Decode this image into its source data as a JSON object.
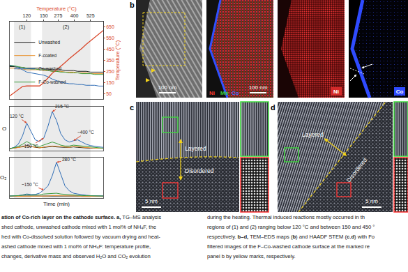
{
  "chart_data": [
    {
      "type": "line",
      "x": [
        0,
        5,
        10,
        15,
        20,
        25,
        30,
        35,
        40,
        45,
        50,
        55,
        60,
        65,
        70,
        75,
        80,
        85,
        90,
        95,
        100,
        105,
        110
      ],
      "xlim": [
        0,
        110
      ],
      "xticks": [],
      "ylim": [
        0,
        1
      ],
      "yticks": [],
      "x2_label": "Temperature (°C)",
      "x2ticks": [
        {
          "value": 20,
          "label": "120"
        },
        {
          "value": 40,
          "label": "150"
        },
        {
          "value": 57,
          "label": "275"
        },
        {
          "value": 76,
          "label": "400"
        },
        {
          "value": 95,
          "label": "525"
        }
      ],
      "y2_label": "Temperature (°C)",
      "y2lim": [
        0,
        700
      ],
      "y2ticks": [
        50,
        150,
        250,
        350,
        450,
        550,
        650
      ],
      "legend": "upper left",
      "regions": [
        {
          "label": "(1)",
          "x": [
            5,
            25
          ]
        },
        {
          "label": "(2)",
          "x": [
            38,
            95
          ]
        }
      ],
      "series": [
        {
          "name": "Unwashed",
          "color": "#1a1a1a",
          "values": [
            0.42,
            0.42,
            0.41,
            0.41,
            0.4,
            0.4,
            0.4,
            0.4,
            0.39,
            0.39,
            0.38,
            0.38,
            0.38,
            0.37,
            0.37,
            0.37,
            0.36,
            0.36,
            0.36,
            0.35,
            0.35,
            0.35,
            0.35
          ]
        },
        {
          "name": "F-coated",
          "color": "#e8912d",
          "values": [
            0.4,
            0.4,
            0.39,
            0.39,
            0.38,
            0.38,
            0.38,
            0.38,
            0.37,
            0.37,
            0.36,
            0.36,
            0.36,
            0.35,
            0.35,
            0.35,
            0.34,
            0.34,
            0.34,
            0.33,
            0.33,
            0.33,
            0.33
          ]
        },
        {
          "name": "Co-washed",
          "color": "#2f6db5",
          "values": [
            0.44,
            0.43,
            0.41,
            0.38,
            0.35,
            0.34,
            0.33,
            0.32,
            0.31,
            0.29,
            0.26,
            0.24,
            0.22,
            0.21,
            0.2,
            0.2,
            0.19,
            0.19,
            0.18,
            0.18,
            0.18,
            0.17,
            0.17
          ]
        },
        {
          "name": "F-Co-washed",
          "color": "#3a9a3a",
          "values": [
            0.43,
            0.43,
            0.42,
            0.41,
            0.4,
            0.39,
            0.39,
            0.38,
            0.38,
            0.37,
            0.36,
            0.36,
            0.35,
            0.35,
            0.34,
            0.34,
            0.34,
            0.33,
            0.33,
            0.33,
            0.32,
            0.32,
            0.32
          ]
        },
        {
          "color": "#d9472b",
          "axis": "y2",
          "values": [
            30,
            60,
            90,
            115,
            120,
            120,
            120,
            120,
            150,
            195,
            235,
            265,
            295,
            330,
            365,
            395,
            425,
            460,
            495,
            525,
            560,
            590,
            620
          ]
        }
      ]
    },
    {
      "type": "line",
      "label": "O",
      "x": [
        0,
        5,
        10,
        15,
        20,
        25,
        30,
        35,
        40,
        45,
        50,
        55,
        60,
        65,
        70,
        75,
        80,
        85,
        90,
        95,
        100,
        105,
        110
      ],
      "xlim": [
        0,
        110
      ],
      "xticks": [],
      "ylim": [
        0,
        1
      ],
      "yticks": [],
      "annotations": [
        {
          "text": "120 °C",
          "x": 20,
          "y": 0.62
        },
        {
          "text": "~150 °C",
          "x": 40,
          "y": 0.28
        },
        {
          "text": "215 °C",
          "x": 50,
          "y": 0.88
        },
        {
          "text": "~400 °C",
          "x": 75,
          "y": 0.22
        }
      ],
      "series": [
        {
          "name": "Unwashed",
          "color": "#1a1a1a",
          "values": [
            0.04,
            0.05,
            0.07,
            0.09,
            0.11,
            0.09,
            0.07,
            0.06,
            0.07,
            0.08,
            0.09,
            0.08,
            0.07,
            0.07,
            0.07,
            0.08,
            0.07,
            0.06,
            0.06,
            0.05,
            0.05,
            0.05,
            0.05
          ]
        },
        {
          "name": "F-coated",
          "color": "#e8912d",
          "values": [
            0.04,
            0.05,
            0.06,
            0.08,
            0.1,
            0.08,
            0.07,
            0.06,
            0.08,
            0.09,
            0.1,
            0.09,
            0.08,
            0.07,
            0.07,
            0.09,
            0.08,
            0.07,
            0.06,
            0.06,
            0.05,
            0.05,
            0.05
          ]
        },
        {
          "name": "Co-washed",
          "color": "#2f6db5",
          "values": [
            0.04,
            0.07,
            0.14,
            0.33,
            0.62,
            0.42,
            0.24,
            0.2,
            0.28,
            0.55,
            0.88,
            0.68,
            0.38,
            0.24,
            0.19,
            0.22,
            0.24,
            0.19,
            0.14,
            0.11,
            0.09,
            0.08,
            0.07
          ]
        },
        {
          "name": "F-Co-washed",
          "color": "#3a9a3a",
          "values": [
            0.04,
            0.06,
            0.09,
            0.14,
            0.2,
            0.15,
            0.11,
            0.09,
            0.12,
            0.16,
            0.19,
            0.16,
            0.12,
            0.1,
            0.1,
            0.12,
            0.11,
            0.09,
            0.08,
            0.07,
            0.06,
            0.06,
            0.05
          ]
        }
      ]
    },
    {
      "type": "line",
      "label": "O₂",
      "x_label": "Time (min)",
      "x": [
        0,
        5,
        10,
        15,
        20,
        25,
        30,
        35,
        40,
        45,
        50,
        55,
        60,
        65,
        70,
        75,
        80,
        85,
        90,
        95,
        100,
        105,
        110
      ],
      "xlim": [
        0,
        110
      ],
      "xticks": [],
      "ylim": [
        0,
        1
      ],
      "yticks": [],
      "annotations": [
        {
          "text": "280 °C",
          "x": 55,
          "y": 0.88
        },
        {
          "text": "~150 °C",
          "x": 40,
          "y": 0.2
        }
      ],
      "series": [
        {
          "name": "Unwashed",
          "color": "#1a1a1a",
          "values": [
            0.05,
            0.05,
            0.05,
            0.05,
            0.06,
            0.05,
            0.05,
            0.05,
            0.06,
            0.06,
            0.06,
            0.06,
            0.06,
            0.06,
            0.05,
            0.05,
            0.05,
            0.05,
            0.05,
            0.05,
            0.05,
            0.05,
            0.05
          ]
        },
        {
          "name": "F-coated",
          "color": "#e8912d",
          "values": [
            0.04,
            0.04,
            0.04,
            0.05,
            0.05,
            0.05,
            0.05,
            0.05,
            0.05,
            0.05,
            0.06,
            0.06,
            0.05,
            0.05,
            0.05,
            0.05,
            0.05,
            0.04,
            0.04,
            0.04,
            0.04,
            0.04,
            0.04
          ]
        },
        {
          "name": "Co-washed",
          "color": "#2f6db5",
          "values": [
            0.05,
            0.05,
            0.06,
            0.08,
            0.1,
            0.09,
            0.09,
            0.12,
            0.2,
            0.3,
            0.55,
            0.88,
            0.6,
            0.3,
            0.18,
            0.12,
            0.1,
            0.08,
            0.07,
            0.06,
            0.06,
            0.05,
            0.05
          ]
        },
        {
          "name": "F-Co-washed",
          "color": "#3a9a3a",
          "values": [
            0.05,
            0.05,
            0.06,
            0.07,
            0.08,
            0.07,
            0.07,
            0.08,
            0.1,
            0.11,
            0.12,
            0.12,
            0.1,
            0.09,
            0.08,
            0.07,
            0.07,
            0.06,
            0.06,
            0.06,
            0.05,
            0.05,
            0.05
          ]
        }
      ]
    }
  ],
  "panels": {
    "b": {
      "label": "b",
      "images": [
        {
          "type": "haadf",
          "scale_bar": "100 nm"
        },
        {
          "type": "eds_overlay",
          "scale_bar": "100 nm",
          "elements": [
            {
              "text": "Ni",
              "color": "#ff3b30"
            },
            {
              "text": "Mn",
              "color": "#3ad13a"
            },
            {
              "text": "Co",
              "color": "#4a68ff"
            }
          ]
        },
        {
          "type": "eds",
          "element": "Ni",
          "color": "#d42a2a"
        },
        {
          "type": "eds",
          "element": "Co",
          "color": "#2f4bff"
        }
      ]
    },
    "c": {
      "label": "c",
      "layered": "Layered",
      "disordered": "Disordered",
      "scale_bar": "5 nm"
    },
    "d": {
      "label": "d",
      "layered": "Layered",
      "disordered": "Disordered",
      "scale_bar": "5 nm"
    }
  },
  "caption": {
    "columns": [
      [
        [
          {
            "text": "ation of Co-rich layer on the cathode surface. a,",
            "bold": true
          },
          {
            "text": " TG–MS analysis"
          }
        ],
        [
          {
            "text": "shed cathode, unwashed cathode mixed with 1 mol% of NH₄F, the"
          }
        ],
        [
          {
            "text": "hed with Co-dissolved solution followed by vacuum drying and heat-"
          }
        ],
        [
          {
            "text": "ashed cathode mixed with 1 mol% of NH₄F: temperature profile,"
          }
        ],
        [
          {
            "text": "changes, derivative mass and observed H₂O and CO₂ evolution"
          }
        ]
      ],
      [
        [
          {
            "text": "during the heating. Thermal induced reactions mostly occurred in th"
          }
        ],
        [
          {
            "text": "regions of (1) and (2) ranging below 120 °C and between 150 and 450 °"
          }
        ],
        [
          {
            "text": "respectively. "
          },
          {
            "text": "b–d,",
            "bold": true
          },
          {
            "text": " TEM–EDS maps ("
          },
          {
            "text": "b",
            "bold": true
          },
          {
            "text": ") and HAADF STEM ("
          },
          {
            "text": "c",
            "bold": true
          },
          {
            "text": ","
          },
          {
            "text": "d",
            "bold": true
          },
          {
            "text": ") with Fo"
          }
        ],
        [
          {
            "text": "filtered images of the F–Co-washed cathode surface at the marked re"
          }
        ],
        [
          {
            "text": "panel b by yellow marks, respectively."
          }
        ]
      ]
    ]
  }
}
